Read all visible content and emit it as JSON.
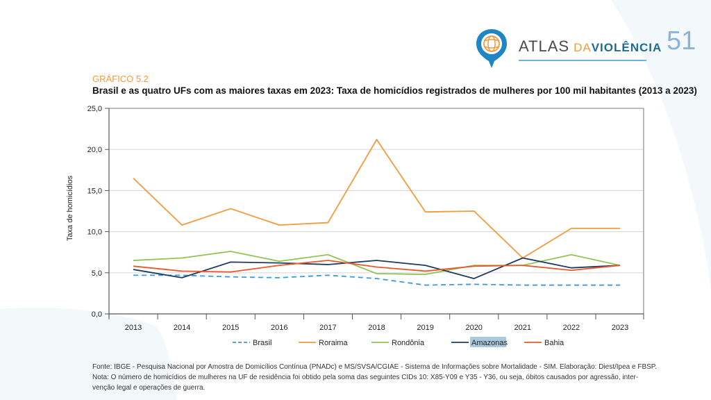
{
  "header": {
    "logo_word1": "ATLAS",
    "logo_word2": "DA",
    "logo_word3": "VIOLÊNCIA",
    "logo_icon": "globe-pin-icon",
    "page_number": "51"
  },
  "colors": {
    "brand_blue": "#1b6c95",
    "brand_orange": "#f39a3c",
    "page_number": "#8fb3d6"
  },
  "chart_kicker": "GRÁFICO 5.2",
  "chart_title": "Brasil e as quatro UFs com as maiores taxas em 2023: Taxa de homicídios registrados de mulheres por 100 mil habitantes (2013 a 2023)",
  "chart_data": {
    "type": "line",
    "title": "Brasil e as quatro UFs com as maiores taxas em 2023: Taxa de homicídios registrados de mulheres por 100 mil habitantes (2013 a 2023)",
    "xlabel": "",
    "ylabel": "Taxa de homicídios",
    "ylim": [
      0,
      25
    ],
    "yticks": [
      "0,0",
      "5,0",
      "10,0",
      "15,0",
      "20,0",
      "25,0"
    ],
    "ytick_values": [
      0,
      5,
      10,
      15,
      20,
      25
    ],
    "grid": true,
    "legend_position": "bottom",
    "categories": [
      "2013",
      "2014",
      "2015",
      "2016",
      "2017",
      "2018",
      "2019",
      "2020",
      "2021",
      "2022",
      "2023"
    ],
    "series": [
      {
        "name": "Brasil",
        "color": "#3a9bd9",
        "dashed": true,
        "values": [
          4.7,
          4.7,
          4.5,
          4.4,
          4.7,
          4.3,
          3.5,
          3.6,
          3.5,
          3.5,
          3.5
        ]
      },
      {
        "name": "Roraima",
        "color": "#f39a3c",
        "dashed": false,
        "values": [
          16.5,
          10.8,
          12.8,
          10.8,
          11.1,
          21.2,
          12.4,
          12.5,
          6.8,
          10.4,
          10.4
        ]
      },
      {
        "name": "Rondônia",
        "color": "#92c353",
        "dashed": false,
        "values": [
          6.5,
          6.8,
          7.6,
          6.4,
          7.2,
          4.9,
          4.8,
          5.9,
          5.9,
          7.2,
          5.9
        ]
      },
      {
        "name": "Amazonas",
        "color": "#1e3a5f",
        "dashed": false,
        "values": [
          5.4,
          4.4,
          6.3,
          6.2,
          6.0,
          6.5,
          5.9,
          4.3,
          6.8,
          5.6,
          5.9
        ]
      },
      {
        "name": "Bahia",
        "color": "#e8582a",
        "dashed": false,
        "values": [
          5.8,
          5.2,
          5.1,
          5.9,
          6.5,
          5.7,
          5.2,
          5.8,
          5.9,
          5.3,
          5.9
        ]
      }
    ],
    "highlighted_legend_entry": "Amazonas"
  },
  "footer": {
    "source": "Fonte: IBGE - Pesquisa Nacional por Amostra de Domicílios Contínua (PNADc) e MS/SVSA/CGIAE - Sistema de Informações sobre Mortalidade - SIM. Elaboração: Diest/Ipea e FBSP.",
    "note_line1": "Nota: O número de homicídios de mulheres na UF de residência foi obtido pela soma das seguintes CIDs 10: X85-Y09 e Y35 - Y36, ou seja, óbitos causados por agressão, inter-",
    "note_line2": "venção legal e operações de guerra."
  }
}
